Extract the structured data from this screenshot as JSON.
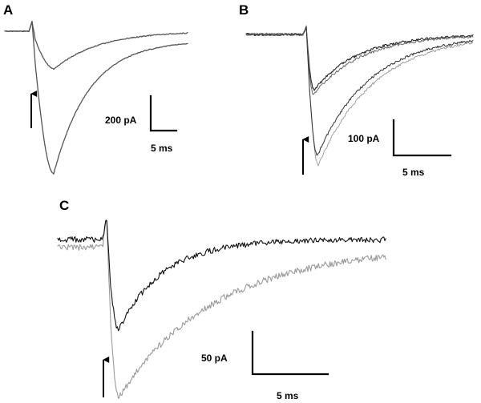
{
  "panels": {
    "a": {
      "letter": "A",
      "amplitude_label": "200 pA",
      "time_label": "5 ms",
      "trace_color": "#555555"
    },
    "b": {
      "letter": "B",
      "amplitude_label": "100 pA",
      "time_label": "5 ms",
      "trace_colors": [
        "#222222",
        "#666666",
        "#999999"
      ]
    },
    "c": {
      "letter": "C",
      "amplitude_label": "50 pA",
      "time_label": "5 ms",
      "trace_colors": [
        "#111111",
        "#9a9a9a"
      ]
    }
  },
  "icons": {
    "stimulus_marker": "up-arrow-icon"
  }
}
